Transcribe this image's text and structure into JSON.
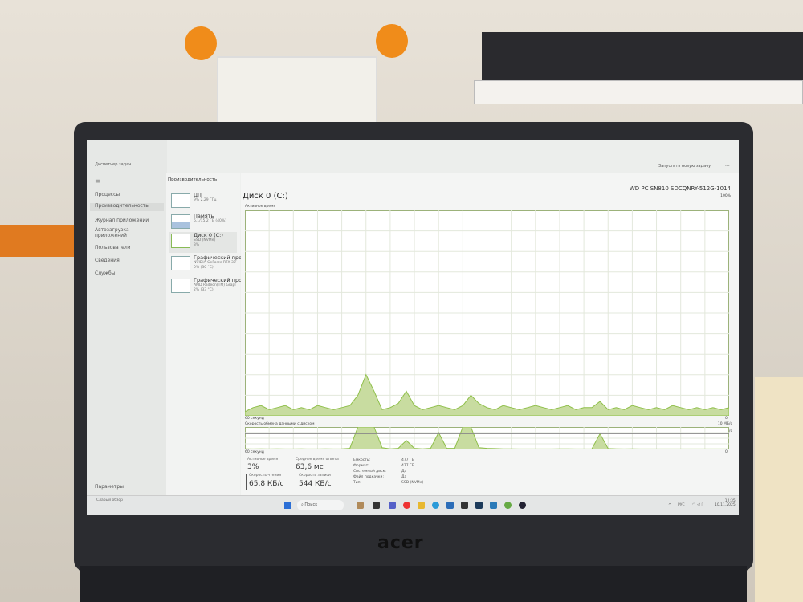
{
  "window": {
    "title": "Диспетчер задач",
    "run_task": "Запустить новую задачу",
    "more": "..."
  },
  "nav": {
    "items": [
      {
        "label": "Процессы"
      },
      {
        "label": "Производительность"
      },
      {
        "label": "Журнал приложений"
      },
      {
        "label": "Автозагрузка приложений"
      },
      {
        "label": "Пользователи"
      },
      {
        "label": "Сведения"
      },
      {
        "label": "Службы"
      }
    ],
    "settings": "Параметры"
  },
  "panel": {
    "title": "Производительность",
    "cards": [
      {
        "title": "ЦП",
        "sub": "9% 2,29 ГГц"
      },
      {
        "title": "Память",
        "sub": "6,1/15,2 ГБ (40%)"
      },
      {
        "title": "Диск 0 (C:)",
        "sub": "SSD (NVMe)",
        "sub2": "3%"
      },
      {
        "title": "Графический про",
        "sub": "NVIDIA GeForce RTX 30",
        "sub2": "0% (30 °C)"
      },
      {
        "title": "Графический про",
        "sub": "AMD Radeon(TM) Grapl",
        "sub2": "2% (33 °C)"
      }
    ]
  },
  "main": {
    "title": "Диск 0 (C:)",
    "model": "WD PC SN810 SDCQNRY-512G-1014",
    "graph1": {
      "label": "Активное время",
      "max": "100%",
      "time": "60 секунд",
      "min": "0"
    },
    "graph2": {
      "label": "Скорость обмена данными с диском",
      "max": "10 МБ/с",
      "line": "7 МБ/с",
      "time": "60 секунд",
      "min": "0"
    },
    "stats": {
      "active_label": "Активное время",
      "active": "3%",
      "resp_label": "Среднее время ответа",
      "resp": "63,6 мс",
      "read_label": "Скорость чтения",
      "read": "65,8 КБ/с",
      "write_label": "Скорость записи",
      "write": "544 КБ/с"
    },
    "props": [
      {
        "k": "Емкость:",
        "v": "477 ГБ"
      },
      {
        "k": "Формат:",
        "v": "477 ГБ"
      },
      {
        "k": "Системный диск:",
        "v": "Да"
      },
      {
        "k": "Файл подкачки:",
        "v": "Да"
      },
      {
        "k": "Тип:",
        "v": "SSD (NVMe)"
      }
    ]
  },
  "taskbar": {
    "weather": "Слабый обзор",
    "search": "Поиск",
    "lang": "РУС",
    "time": "12:35",
    "date": "10.11.2025"
  },
  "brand": "acer",
  "colors": {
    "accent": "#8fbf4a",
    "fill": "#c8dca0"
  },
  "chart_data": [
    {
      "type": "area",
      "title": "Активное время",
      "x_range_seconds": [
        60,
        0
      ],
      "ylim": [
        0,
        100
      ],
      "unit": "%",
      "values": [
        2,
        4,
        5,
        3,
        4,
        5,
        3,
        4,
        3,
        5,
        4,
        3,
        4,
        5,
        10,
        20,
        12,
        3,
        4,
        6,
        12,
        5,
        3,
        4,
        5,
        4,
        3,
        5,
        10,
        6,
        4,
        3,
        5,
        4,
        3,
        4,
        5,
        4,
        3,
        4,
        5,
        3,
        4,
        4,
        7,
        3,
        4,
        3,
        5,
        4,
        3,
        4,
        3,
        5,
        4,
        3,
        4,
        3,
        4,
        3,
        4
      ]
    },
    {
      "type": "area",
      "title": "Скорость обмена данными с диском",
      "x_range_seconds": [
        60,
        0
      ],
      "ylim": [
        0,
        10
      ],
      "unit": "МБ/с",
      "values": [
        0.3,
        0.2,
        0.3,
        0.2,
        0.3,
        0.2,
        0.2,
        0.3,
        0.2,
        0.2,
        0.3,
        0.2,
        0.3,
        0.5,
        10,
        10,
        10,
        0.8,
        0.3,
        0.5,
        4,
        0.5,
        0.3,
        0.5,
        7.5,
        0.5,
        0.5,
        10,
        10,
        0.8,
        0.5,
        0.4,
        0.3,
        0.3,
        0.2,
        0.2,
        0.2,
        0.2,
        0.2,
        0.3,
        0.3,
        0.2,
        0.2,
        0.3,
        7,
        0.4,
        0.3,
        0.2,
        0.3,
        0.2,
        0.2,
        0.2,
        0.2,
        0.2,
        0.2,
        0.2,
        0.2,
        0.2,
        0.2,
        0.2,
        0.2
      ]
    }
  ]
}
